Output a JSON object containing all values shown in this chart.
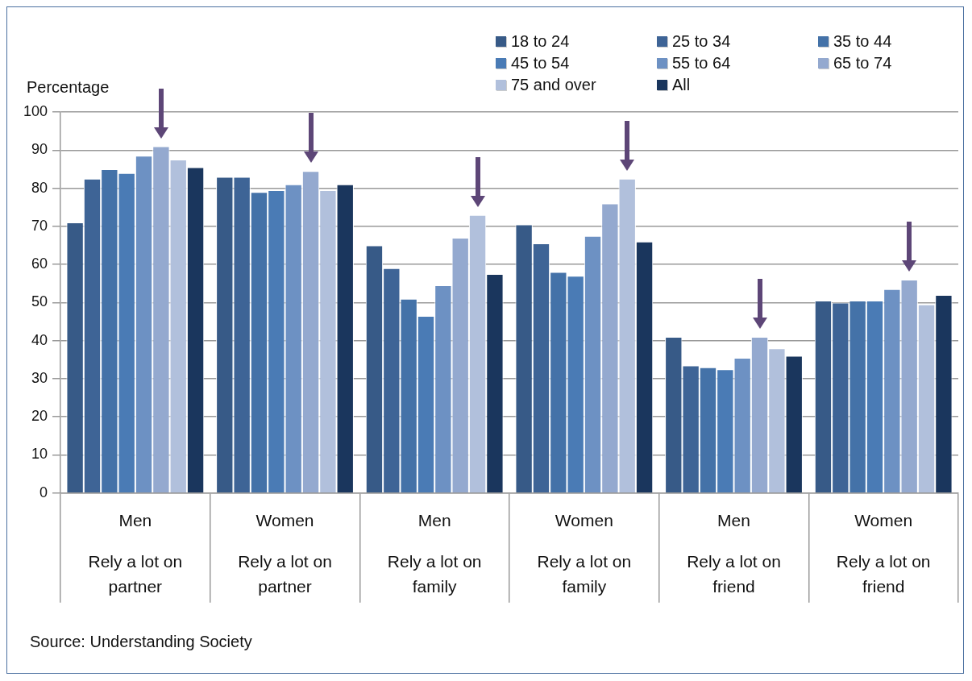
{
  "chart_data": {
    "type": "bar",
    "categories": [
      "Men\nRely a lot on partner",
      "Women\nRely a lot on partner",
      "Men\nRely a lot on family",
      "Women\nRely a lot on family",
      "Men\nRely a lot on friend",
      "Women\nRely a lot on friend"
    ],
    "ylabel": "Percentage",
    "series": [
      {
        "name": "18 to 24",
        "color": "#375a87",
        "values": [
          71,
          83,
          65,
          70.5,
          41,
          50.5
        ]
      },
      {
        "name": "25 to 34",
        "color": "#3e6496",
        "values": [
          82.5,
          83,
          59,
          65.5,
          33.5,
          50
        ]
      },
      {
        "name": "35 to 44",
        "color": "#4472a8",
        "values": [
          85,
          79,
          51,
          58,
          33,
          50.5
        ]
      },
      {
        "name": "45 to 54",
        "color": "#4a7bb5",
        "values": [
          84,
          79.5,
          46.5,
          57,
          32.5,
          50.5
        ]
      },
      {
        "name": "55 to 64",
        "color": "#6d91c3",
        "values": [
          88.5,
          81,
          54.5,
          67.5,
          35.5,
          53.5
        ]
      },
      {
        "name": "65 to 74",
        "color": "#94a9cf",
        "values": [
          91,
          84.5,
          67,
          76,
          41,
          56
        ]
      },
      {
        "name": "75 and over",
        "color": "#b1c0dc",
        "values": [
          87.5,
          79.5,
          73,
          82.5,
          38,
          49.5
        ]
      },
      {
        "name": "All",
        "color": "#1a365d",
        "values": [
          85.5,
          81,
          57.5,
          66,
          36,
          52
        ]
      }
    ],
    "ylim": [
      0,
      100
    ],
    "yticks": [
      0,
      10,
      20,
      30,
      40,
      50,
      60,
      70,
      80,
      90,
      100
    ],
    "grid": "y",
    "legend": "top right",
    "annotations": [
      "Source: Understanding Society"
    ]
  }
}
